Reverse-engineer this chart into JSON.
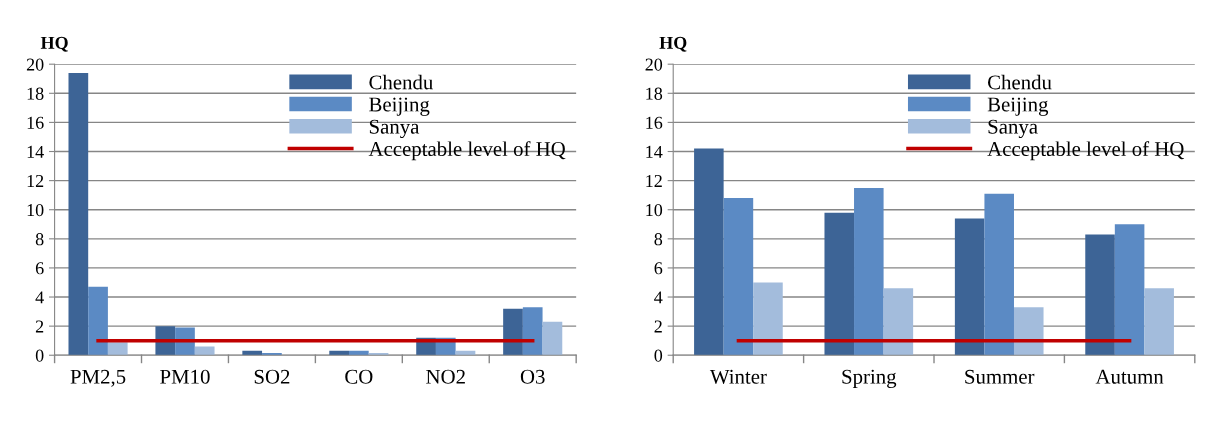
{
  "chart_data": [
    {
      "type": "bar",
      "ylabel": "HQ",
      "categories": [
        "PM2,5",
        "PM10",
        "SO2",
        "CO",
        "NO2",
        "O3"
      ],
      "ylim": [
        0,
        20
      ],
      "yticks": [
        0,
        2,
        4,
        6,
        8,
        10,
        12,
        14,
        16,
        18,
        20
      ],
      "grid": "y",
      "legend": "top right",
      "series": [
        {
          "name": "Chendu",
          "color": "#3d6496",
          "values": [
            19.4,
            2.0,
            0.3,
            0.3,
            1.2,
            3.2
          ]
        },
        {
          "name": "Beijing",
          "color": "#5b8ac4",
          "values": [
            4.7,
            1.9,
            0.15,
            0.3,
            1.2,
            3.3
          ]
        },
        {
          "name": "Sanya",
          "color": "#a3bcdc",
          "values": [
            0.9,
            0.6,
            null,
            0.15,
            0.3,
            2.3
          ]
        },
        {
          "name": "Acceptable level of HQ",
          "type": "line",
          "color": "#c00000",
          "values": [
            1,
            1,
            1,
            1,
            1,
            1
          ]
        }
      ]
    },
    {
      "type": "bar",
      "ylabel": "HQ",
      "categories": [
        "Winter",
        "Spring",
        "Summer",
        "Autumn"
      ],
      "ylim": [
        0,
        20
      ],
      "yticks": [
        0,
        2,
        4,
        6,
        8,
        10,
        12,
        14,
        16,
        18,
        20
      ],
      "grid": "y",
      "legend": "top right",
      "series": [
        {
          "name": "Chendu",
          "color": "#3d6496",
          "values": [
            14.2,
            9.8,
            9.4,
            8.3
          ]
        },
        {
          "name": "Beijing",
          "color": "#5b8ac4",
          "values": [
            10.8,
            11.5,
            11.1,
            9.0
          ]
        },
        {
          "name": "Sanya",
          "color": "#a3bcdc",
          "values": [
            5.0,
            4.6,
            3.3,
            4.6
          ]
        },
        {
          "name": "Acceptable level of HQ",
          "type": "line",
          "color": "#c00000",
          "values": [
            1,
            1,
            1,
            1
          ]
        }
      ]
    }
  ]
}
